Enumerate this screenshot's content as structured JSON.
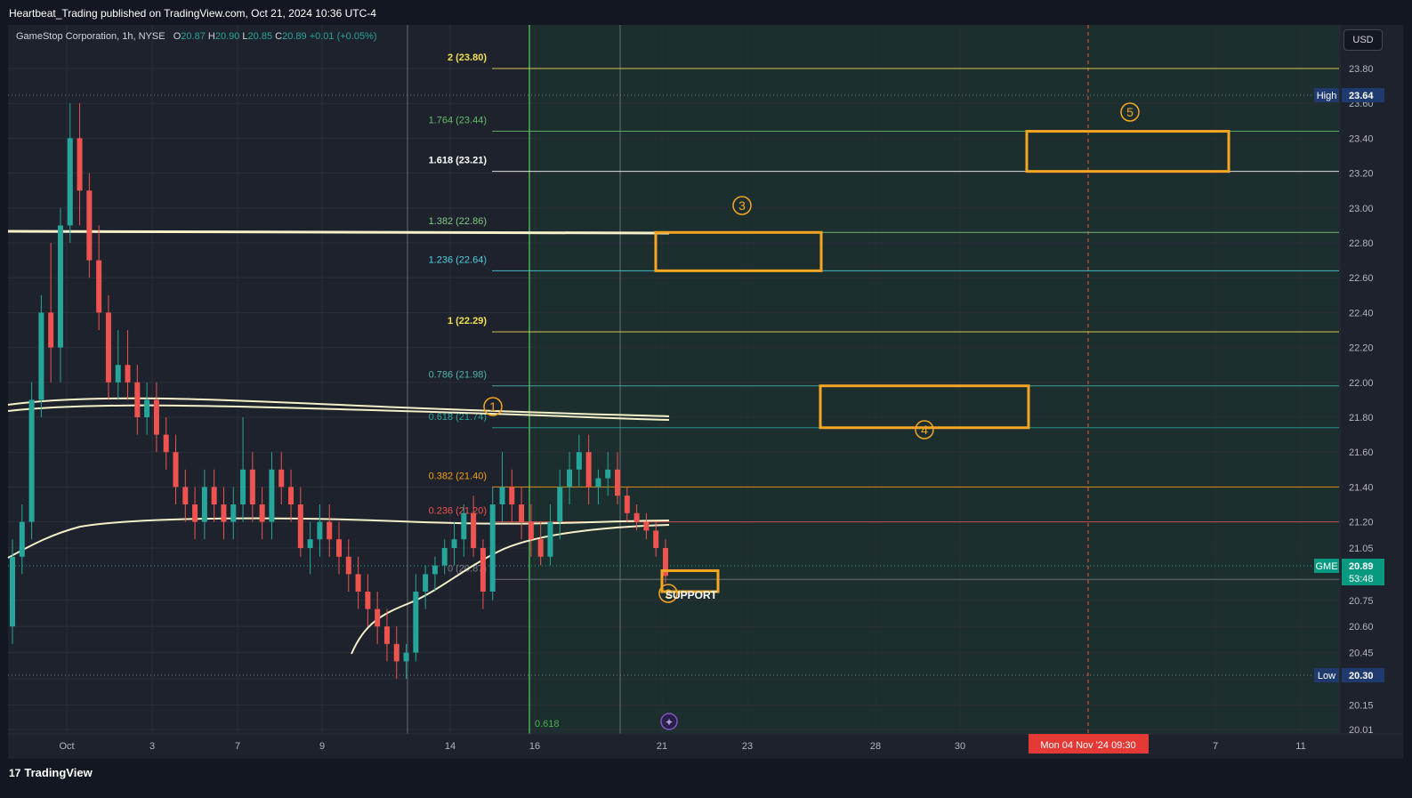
{
  "header": {
    "publisher": "Heartbeat_Trading published on TradingView.com, Oct 21, 2024 10:36 UTC-4"
  },
  "symbol": {
    "name": "GameStop Corporation, 1h, NYSE",
    "o_label": "O",
    "o_value": "20.87",
    "h_label": "H",
    "h_value": "20.90",
    "l_label": "L",
    "l_value": "20.85",
    "c_label": "C",
    "c_value": "20.89",
    "change": "+0.01 (+0.05%)"
  },
  "currency_button": "USD",
  "footer": {
    "brand": "TradingView",
    "logo_glyph": "17"
  },
  "colors": {
    "background": "#1e222d",
    "up_candle": "#26a69a",
    "down_candle": "#ef5350",
    "ma_line": "#f5f0c8",
    "box": "#f5a623",
    "fib_zone": "#1c3b2f"
  },
  "chart_data": {
    "type": "candlestick",
    "title": "GameStop Corporation, 1h, NYSE",
    "x_tick_labels": [
      "Oct",
      "3",
      "7",
      "9",
      "14",
      "16",
      "21",
      "23",
      "28",
      "30",
      "7",
      "11"
    ],
    "highlight_x_label": "Mon 04 Nov '24   09:30",
    "y_tick_labels": [
      "23.80",
      "23.60",
      "23.40",
      "23.20",
      "23.00",
      "22.80",
      "22.60",
      "22.40",
      "22.20",
      "22.00",
      "21.80",
      "21.60",
      "21.40",
      "21.20",
      "21.05",
      "20.75",
      "20.60",
      "20.45",
      "20.30",
      "20.15",
      "20.01"
    ],
    "ylim": [
      20.0,
      24.1
    ],
    "price_tags": [
      {
        "label": "High",
        "value": "23.64"
      },
      {
        "label": "GME",
        "value": "20.89",
        "sub": "53:48"
      },
      {
        "label": "Low",
        "value": "20.30"
      }
    ],
    "fib_levels": [
      {
        "ratio": "2",
        "price": 23.8,
        "text": "2 (23.80)",
        "color": "#f0e050"
      },
      {
        "ratio": "1.764",
        "price": 23.44,
        "text": "1.764 (23.44)",
        "color": "#66bb6a"
      },
      {
        "ratio": "1.618",
        "price": 23.21,
        "text": "1.618 (23.21)",
        "color": "#ffffff"
      },
      {
        "ratio": "1.382",
        "price": 22.86,
        "text": "1.382 (22.86)",
        "color": "#81c784"
      },
      {
        "ratio": "1.236",
        "price": 22.64,
        "text": "1.236 (22.64)",
        "color": "#4dd0e1"
      },
      {
        "ratio": "1",
        "price": 22.29,
        "text": "1 (22.29)",
        "color": "#f0e050"
      },
      {
        "ratio": "0.786",
        "price": 21.98,
        "text": "0.786 (21.98)",
        "color": "#4db6ac"
      },
      {
        "ratio": "0.618",
        "price": 21.74,
        "text": "0.618 (21.74)",
        "color": "#26a69a"
      },
      {
        "ratio": "0.382",
        "price": 21.4,
        "text": "0.382 (21.40)",
        "color": "#f59e0b"
      },
      {
        "ratio": "0.236",
        "price": 21.2,
        "text": "0.236 (21.20)",
        "color": "#ef5350"
      },
      {
        "ratio": "0",
        "price": 20.87,
        "text": "0 (20.87)",
        "color": "#787b86"
      }
    ],
    "fib_time_label": "0.618",
    "wave_labels": [
      "1",
      "2",
      "3",
      "4",
      "5"
    ],
    "support_label": "SUPPORT",
    "target_boxes": [
      {
        "wave": "3",
        "low": 22.64,
        "high": 22.86
      },
      {
        "wave": "4",
        "low": 21.74,
        "high": 21.98
      },
      {
        "wave": "5",
        "low": 23.21,
        "high": 23.44
      },
      {
        "wave": "2",
        "low": 20.8,
        "high": 20.92
      }
    ],
    "horizontal_level": 22.8,
    "candles": [
      [
        20.6,
        21.1,
        20.5,
        21.0
      ],
      [
        21.0,
        21.3,
        20.9,
        21.2
      ],
      [
        21.2,
        22.0,
        21.1,
        21.9
      ],
      [
        21.9,
        22.5,
        21.8,
        22.4
      ],
      [
        22.4,
        22.8,
        22.0,
        22.2
      ],
      [
        22.2,
        23.0,
        22.0,
        22.9
      ],
      [
        22.9,
        23.6,
        22.8,
        23.4
      ],
      [
        23.4,
        23.6,
        22.9,
        23.1
      ],
      [
        23.1,
        23.2,
        22.6,
        22.7
      ],
      [
        22.7,
        22.9,
        22.3,
        22.4
      ],
      [
        22.4,
        22.5,
        21.9,
        22.0
      ],
      [
        22.0,
        22.3,
        21.9,
        22.1
      ],
      [
        22.1,
        22.3,
        21.9,
        22.0
      ],
      [
        22.0,
        22.1,
        21.7,
        21.8
      ],
      [
        21.8,
        22.0,
        21.7,
        21.9
      ],
      [
        21.9,
        22.0,
        21.6,
        21.7
      ],
      [
        21.7,
        21.8,
        21.5,
        21.6
      ],
      [
        21.6,
        21.7,
        21.3,
        21.4
      ],
      [
        21.4,
        21.5,
        21.2,
        21.3
      ],
      [
        21.3,
        21.4,
        21.1,
        21.2
      ],
      [
        21.2,
        21.5,
        21.1,
        21.4
      ],
      [
        21.4,
        21.5,
        21.2,
        21.3
      ],
      [
        21.3,
        21.4,
        21.1,
        21.2
      ],
      [
        21.2,
        21.4,
        21.1,
        21.3
      ],
      [
        21.3,
        21.8,
        21.2,
        21.5
      ],
      [
        21.5,
        21.6,
        21.2,
        21.3
      ],
      [
        21.3,
        21.4,
        21.1,
        21.2
      ],
      [
        21.2,
        21.6,
        21.1,
        21.5
      ],
      [
        21.5,
        21.6,
        21.3,
        21.4
      ],
      [
        21.4,
        21.5,
        21.2,
        21.3
      ],
      [
        21.3,
        21.4,
        21.0,
        21.05
      ],
      [
        21.05,
        21.2,
        20.9,
        21.1
      ],
      [
        21.1,
        21.3,
        21.0,
        21.2
      ],
      [
        21.2,
        21.3,
        21.0,
        21.1
      ],
      [
        21.1,
        21.2,
        20.9,
        21.0
      ],
      [
        21.0,
        21.1,
        20.8,
        20.9
      ],
      [
        20.9,
        21.0,
        20.7,
        20.8
      ],
      [
        20.8,
        20.9,
        20.6,
        20.7
      ],
      [
        20.7,
        20.8,
        20.5,
        20.6
      ],
      [
        20.6,
        20.7,
        20.4,
        20.5
      ],
      [
        20.5,
        20.6,
        20.3,
        20.4
      ],
      [
        20.4,
        20.5,
        20.3,
        20.45
      ],
      [
        20.45,
        20.9,
        20.4,
        20.8
      ],
      [
        20.8,
        20.95,
        20.7,
        20.9
      ],
      [
        20.9,
        21.0,
        20.8,
        20.95
      ],
      [
        20.95,
        21.1,
        20.9,
        21.05
      ],
      [
        21.05,
        21.2,
        20.95,
        21.1
      ],
      [
        21.1,
        21.3,
        21.0,
        21.25
      ],
      [
        21.25,
        21.35,
        21.0,
        21.05
      ],
      [
        21.05,
        21.1,
        20.7,
        20.8
      ],
      [
        20.8,
        21.4,
        20.75,
        21.3
      ],
      [
        21.3,
        21.6,
        21.2,
        21.4
      ],
      [
        21.4,
        21.5,
        21.2,
        21.3
      ],
      [
        21.3,
        21.4,
        21.1,
        21.2
      ],
      [
        21.2,
        21.3,
        21.0,
        21.1
      ],
      [
        21.1,
        21.2,
        20.95,
        21.0
      ],
      [
        21.0,
        21.3,
        20.95,
        21.2
      ],
      [
        21.2,
        21.5,
        21.1,
        21.4
      ],
      [
        21.4,
        21.6,
        21.3,
        21.5
      ],
      [
        21.5,
        21.7,
        21.4,
        21.6
      ],
      [
        21.6,
        21.7,
        21.3,
        21.4
      ],
      [
        21.4,
        21.5,
        21.3,
        21.45
      ],
      [
        21.45,
        21.6,
        21.35,
        21.5
      ],
      [
        21.5,
        21.6,
        21.3,
        21.35
      ],
      [
        21.35,
        21.4,
        21.2,
        21.25
      ],
      [
        21.25,
        21.3,
        21.15,
        21.2
      ],
      [
        21.2,
        21.25,
        21.1,
        21.15
      ],
      [
        21.15,
        21.2,
        21.0,
        21.05
      ],
      [
        21.05,
        21.1,
        20.85,
        20.89
      ]
    ]
  }
}
